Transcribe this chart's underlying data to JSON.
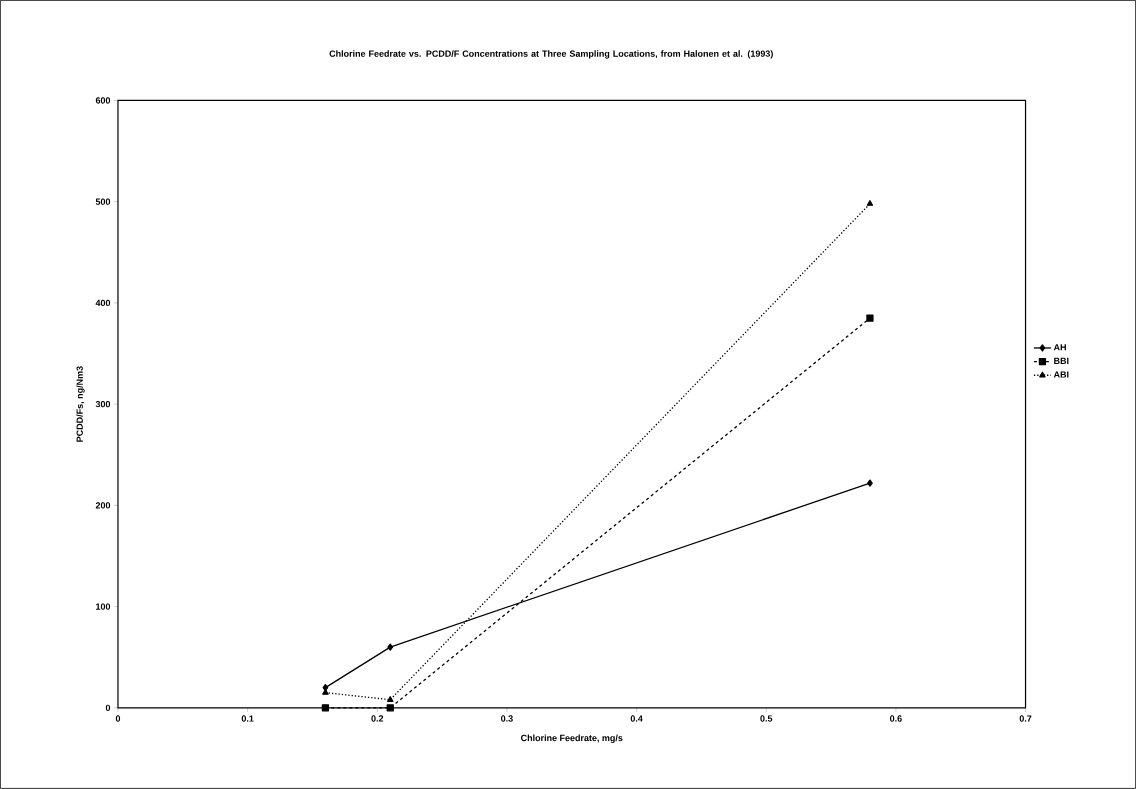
{
  "chart_data": {
    "type": "line",
    "title": "Chlorine Feedrate vs. PCDD/F Concentrations at Three Sampling Locations, from Halonen et al. (1993)",
    "xlabel": "Chlorine Feedrate, mg/s",
    "ylabel": "PCDD/Fs, ng/Nm3",
    "xlim": [
      0,
      0.7
    ],
    "xticks": [
      0,
      0.1,
      0.2,
      0.3,
      0.4,
      0.5,
      0.6,
      0.7
    ],
    "ylim": [
      0,
      600
    ],
    "yticks": [
      0,
      100,
      200,
      300,
      400,
      500,
      600
    ],
    "grid": false,
    "legend": "right",
    "series": [
      {
        "name": "AH",
        "color": "#000000",
        "marker": "diamond",
        "line_style": "solid",
        "x": [
          0.16,
          0.21,
          0.58
        ],
        "values": [
          20,
          60,
          222
        ]
      },
      {
        "name": "BBI",
        "color": "#000000",
        "marker": "square",
        "line_style": "dashed",
        "x": [
          0.16,
          0.21,
          0.58
        ],
        "values": [
          0,
          0,
          385
        ]
      },
      {
        "name": "ABI",
        "color": "#000000",
        "marker": "triangle",
        "line_style": "dotted",
        "x": [
          0.16,
          0.21,
          0.58
        ],
        "values": [
          15,
          8,
          498
        ]
      }
    ]
  }
}
